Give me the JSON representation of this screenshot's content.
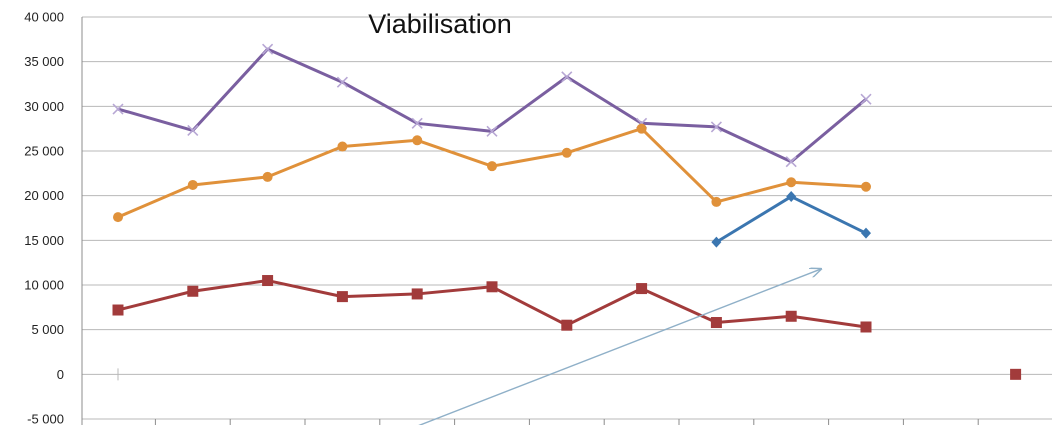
{
  "chart_data": {
    "type": "line",
    "title": "Viabilisation",
    "xlabel": "",
    "ylabel": "",
    "ylim": [
      -5000,
      40000
    ],
    "yticks": [
      40000,
      35000,
      30000,
      25000,
      20000,
      15000,
      10000,
      5000,
      0,
      -5000
    ],
    "ytick_labels": [
      "40 000",
      "35 000",
      "30 000",
      "25 000",
      "20 000",
      "15 000",
      "10 000",
      "5 000",
      "0",
      "-5 000"
    ],
    "x_slots": 13,
    "grid": true,
    "legend": "none",
    "series": [
      {
        "color": "#7a5fa0",
        "marker": "x",
        "values": [
          29700,
          27300,
          36400,
          32700,
          28100,
          27200,
          33300,
          28100,
          27700,
          23800,
          30800,
          null,
          null
        ]
      },
      {
        "color": "#e0913a",
        "marker": "circle",
        "values": [
          17600,
          21200,
          22100,
          25500,
          26200,
          23300,
          24800,
          27500,
          19300,
          21500,
          21000,
          null,
          null
        ]
      },
      {
        "color": "#3b76b0",
        "marker": "diamond",
        "values": [
          null,
          null,
          null,
          null,
          null,
          null,
          null,
          null,
          14800,
          19900,
          15800,
          null,
          null
        ]
      },
      {
        "color": "#a23b3b",
        "marker": "square",
        "values": [
          7200,
          9300,
          10500,
          8700,
          9000,
          9800,
          5500,
          9600,
          5800,
          6500,
          5300,
          null,
          0
        ]
      }
    ],
    "trend_arrow": {
      "color": "#8fb0c8",
      "from": {
        "slot": 4.0,
        "value": -5800
      },
      "to": {
        "slot": 9.4,
        "value": 11800
      }
    }
  }
}
